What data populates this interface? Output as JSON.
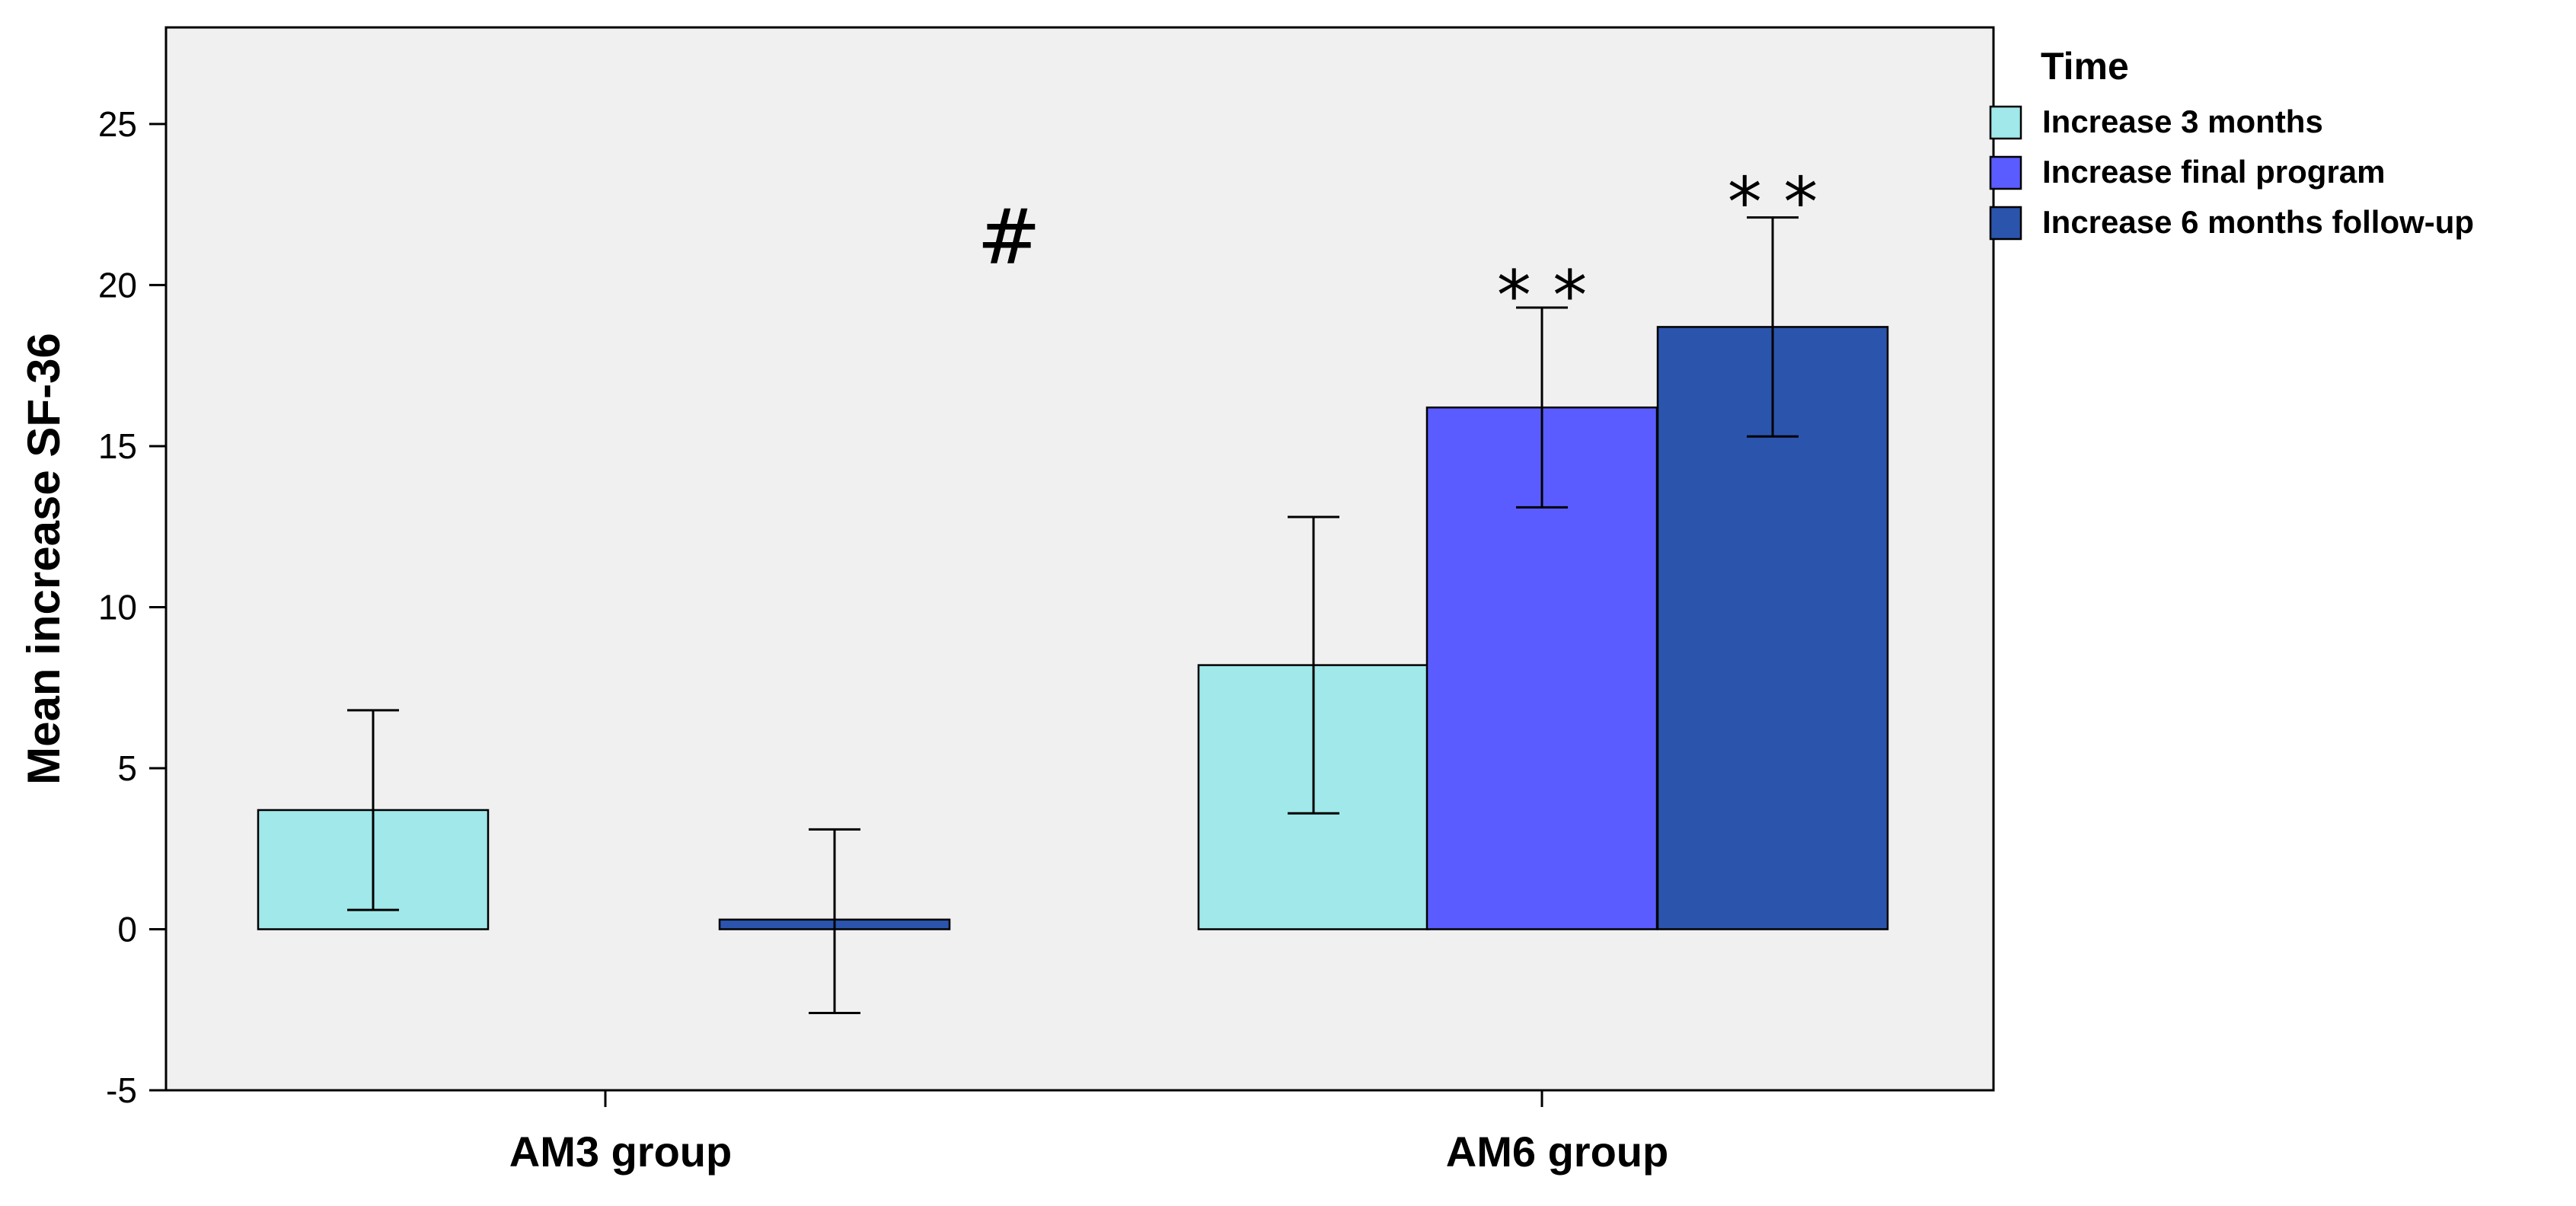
{
  "chart_data": {
    "type": "bar",
    "title": "",
    "xlabel": "",
    "ylabel": "Mean increase SF-36",
    "ylim": [
      -5,
      28
    ],
    "yticks": [
      -5,
      0,
      5,
      10,
      15,
      20,
      25
    ],
    "grid": false,
    "legend_position": "right",
    "categories": [
      "AM3 group",
      "AM6 group"
    ],
    "legend_title": "Time",
    "series": [
      {
        "name": "Increase 3 months",
        "color": "#a0e8ea",
        "values": [
          3.7,
          8.2
        ],
        "error_low": [
          0.6,
          3.6
        ],
        "error_high": [
          6.8,
          12.8
        ]
      },
      {
        "name": "Increase final program",
        "color": "#5a5cff",
        "values": [
          null,
          16.2
        ],
        "error_low": [
          null,
          13.1
        ],
        "error_high": [
          null,
          19.3
        ]
      },
      {
        "name": "Increase 6 months follow-up",
        "color": "#2b54ad",
        "values": [
          0.3,
          18.7
        ],
        "error_low": [
          -2.6,
          15.3
        ],
        "error_high": [
          3.1,
          22.1
        ]
      }
    ],
    "annotations": [
      {
        "text": "#",
        "category": "AM3 group",
        "series": "between groups",
        "y": 21.5
      },
      {
        "text": "* *",
        "category": "AM6 group",
        "series": "Increase final program",
        "y": 20.3
      },
      {
        "text": "* *",
        "category": "AM6 group",
        "series": "Increase 6 months follow-up",
        "y": 23.2
      }
    ]
  }
}
